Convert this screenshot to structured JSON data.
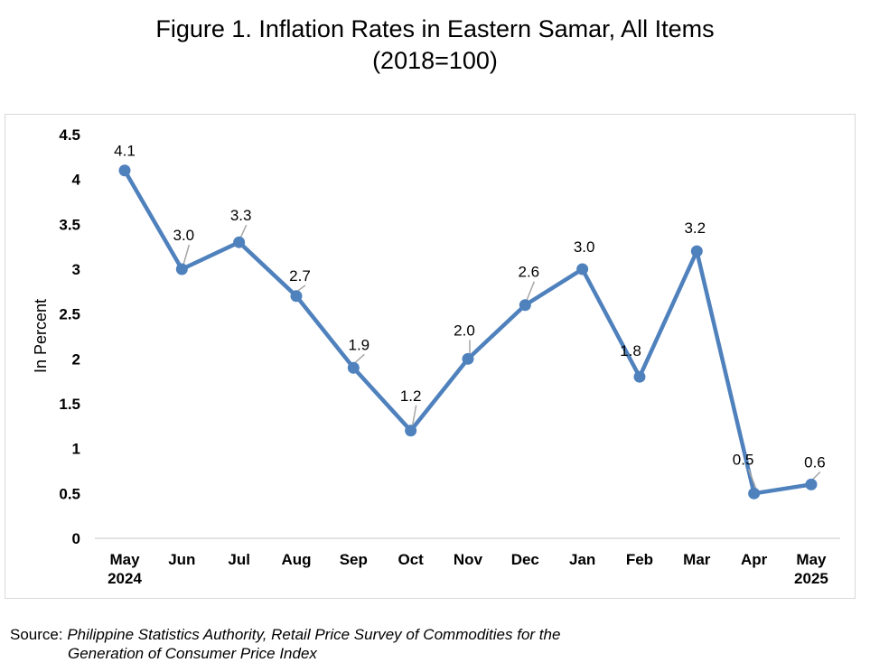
{
  "title_line1": "Figure 1. Inflation Rates in Eastern Samar, All Items",
  "title_line2": "(2018=100)",
  "source": {
    "label": "Source: ",
    "line1": "Philippine Statistics Authority, Retail Price Survey of Commodities for the",
    "line2": "Generation of Consumer Price Index"
  },
  "chart_data": {
    "type": "line",
    "categories": [
      [
        "May",
        "2024"
      ],
      [
        "Jun"
      ],
      [
        "Jul"
      ],
      [
        "Aug"
      ],
      [
        "Sep"
      ],
      [
        "Oct"
      ],
      [
        "Nov"
      ],
      [
        "Dec"
      ],
      [
        "Jan"
      ],
      [
        "Feb"
      ],
      [
        "Mar"
      ],
      [
        "Apr"
      ],
      [
        "May",
        "2025"
      ]
    ],
    "values": [
      4.1,
      3.0,
      3.3,
      2.7,
      1.9,
      1.2,
      2.0,
      2.6,
      3.0,
      1.8,
      3.2,
      0.5,
      0.6
    ],
    "data_labels": [
      "4.1",
      "3.0",
      "3.3",
      "2.7",
      "1.9",
      "1.2",
      "2.0",
      "2.6",
      "3.0",
      "1.8",
      "3.2",
      "0.5",
      "0.6"
    ],
    "ylabel": "In Percent",
    "xlabel": "",
    "ylim": [
      0,
      4.5
    ],
    "yticks": [
      "0",
      "0.5",
      "1",
      "1.5",
      "2",
      "2.5",
      "3",
      "3.5",
      "4",
      "4.5"
    ],
    "grid": false,
    "line_color": "#4f81bd",
    "leader_color": "#a6a6a6"
  }
}
